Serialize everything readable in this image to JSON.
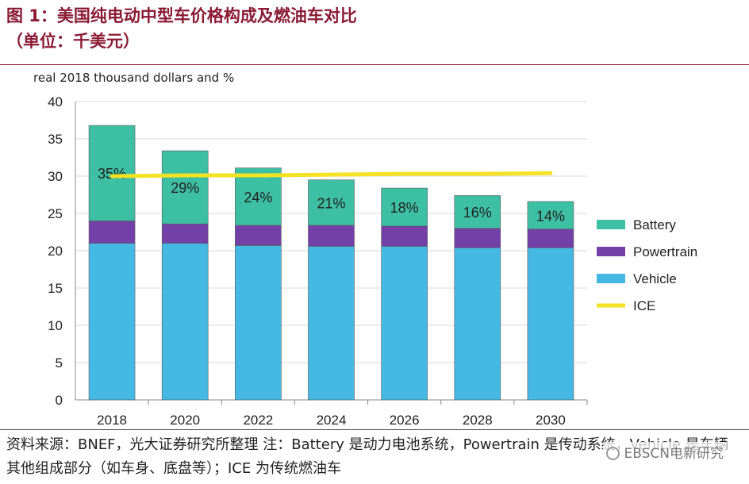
{
  "figure_title_line1": "图 1：美国纯电动中型车价格构成及燃油车对比",
  "figure_title_line2": "（单位：千美元）",
  "unit_label": "real 2018 thousand dollars and %",
  "source_note": "资料来源：BNEF，光大证券研究所整理 注：Battery 是动力电池系统，Powertrain 是传动系统，Vehicle 是车辆其他组成部分（如车身、底盘等）；ICE 为传统燃油车",
  "watermark": "EBSCN电新研究",
  "colors": {
    "battery": "#3dbfa4",
    "powertrain": "#7340a8",
    "vehicle": "#45b8e4",
    "ice": "#f4e225",
    "grid": "#d8d8d8",
    "title": "#8a1a35"
  },
  "chart_data": {
    "type": "bar",
    "stacked": true,
    "categories": [
      "2018",
      "2020",
      "2022",
      "2024",
      "2026",
      "2028",
      "2030"
    ],
    "series": [
      {
        "name": "Vehicle",
        "values": [
          21.0,
          21.0,
          20.7,
          20.6,
          20.6,
          20.4,
          20.4
        ]
      },
      {
        "name": "Powertrain",
        "values": [
          3.0,
          2.6,
          2.7,
          2.8,
          2.7,
          2.6,
          2.5
        ]
      },
      {
        "name": "Battery",
        "values": [
          12.8,
          9.8,
          7.7,
          6.1,
          5.1,
          4.4,
          3.7
        ]
      }
    ],
    "battery_share_labels": [
      "35%",
      "29%",
      "24%",
      "21%",
      "18%",
      "16%",
      "14%"
    ],
    "line_series": {
      "name": "ICE",
      "values": [
        30.0,
        30.1,
        30.1,
        30.2,
        30.3,
        30.3,
        30.4
      ]
    },
    "yticks": [
      "0",
      "5",
      "10",
      "15",
      "20",
      "25",
      "30",
      "35",
      "40"
    ],
    "ylim": [
      0,
      40
    ],
    "legend": [
      "Battery",
      "Powertrain",
      "Vehicle",
      "ICE"
    ],
    "legend_position": "right",
    "grid": true
  }
}
